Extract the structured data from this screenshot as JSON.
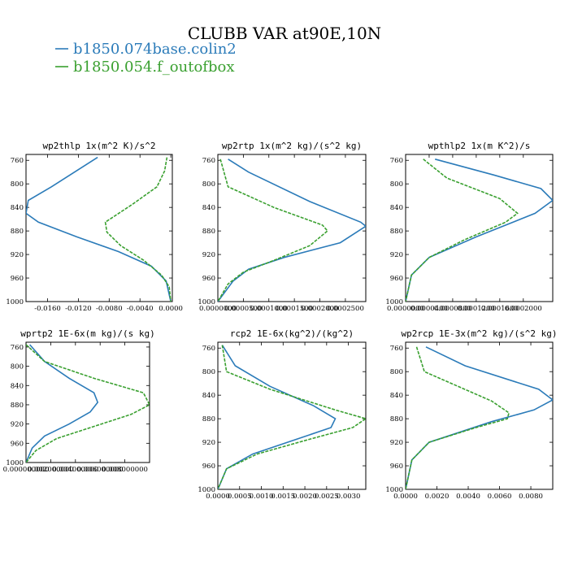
{
  "figure": {
    "title": "CLUBB VAR at90E,10N",
    "legend": [
      {
        "label": "b1850.074base.colin2",
        "color": "#2b7bb9",
        "dash": false
      },
      {
        "label": "b1850.054.f_outofbox",
        "color": "#3aa030",
        "dash": true
      }
    ]
  },
  "chart_data": [
    {
      "type": "line",
      "title": "wp2thlp  1x(m^2 K)/s^2",
      "xlim": [
        -0.0188,
        0.0002
      ],
      "ylim": [
        1000,
        750
      ],
      "xticks": [
        -0.016,
        -0.012,
        -0.008,
        -0.004,
        0.0
      ],
      "xtick_labels": [
        "-0.0160",
        "-0.0120",
        "-0.0080",
        "-0.0040",
        "0.0000"
      ],
      "yticks": [
        760,
        800,
        840,
        880,
        920,
        960,
        1000
      ],
      "ytick_labels": [
        "760",
        "800",
        "840",
        "880",
        "920",
        "960",
        "1000"
      ],
      "series": [
        {
          "name": "b1850.074base.colin2",
          "color": "#2b7bb9",
          "dash": false,
          "x": [
            -0.0095,
            -0.0125,
            -0.0155,
            -0.0185,
            -0.0188,
            -0.0172,
            -0.0122,
            -0.0068,
            -0.0025,
            -0.0006,
            0.0
          ],
          "y": [
            755,
            780,
            805,
            828,
            850,
            865,
            890,
            915,
            940,
            965,
            1000
          ]
        },
        {
          "name": "b1850.054.f_outofbox",
          "color": "#3aa030",
          "dash": true,
          "x": [
            -0.0005,
            -0.0008,
            -0.0018,
            -0.005,
            -0.0085,
            -0.0083,
            -0.0065,
            -0.0035,
            -0.0012,
            -0.0002,
            0.0
          ],
          "y": [
            755,
            778,
            805,
            835,
            865,
            882,
            905,
            930,
            955,
            975,
            1000
          ]
        }
      ]
    },
    {
      "type": "line",
      "title": "wp2rtp  1x(m^2 kg)/(s^2 kg)",
      "xlim": [
        0.0,
        0.00029
      ],
      "ylim": [
        1000,
        750
      ],
      "xticks": [
        0.0,
        5e-05,
        0.0001,
        0.00015,
        0.0002,
        0.00025
      ],
      "xtick_labels": [
        "0.0000000",
        "0.0000500",
        "0.0001000",
        "0.0001500",
        "0.0002000",
        "0.0002500"
      ],
      "yticks": [
        760,
        800,
        840,
        880,
        920,
        960,
        1000
      ],
      "ytick_labels": [
        "760",
        "800",
        "840",
        "880",
        "920",
        "960",
        "1000"
      ],
      "series": [
        {
          "name": "b1850.074base.colin2",
          "color": "#2b7bb9",
          "dash": false,
          "x": [
            2e-05,
            6e-05,
            0.00018,
            0.00028,
            0.00029,
            0.00024,
            0.00013,
            6e-05,
            3e-05,
            0.0
          ],
          "y": [
            758,
            780,
            830,
            865,
            872,
            900,
            925,
            945,
            965,
            1000
          ]
        },
        {
          "name": "b1850.054.f_outofbox",
          "color": "#3aa030",
          "dash": true,
          "x": [
            5e-06,
            2e-05,
            0.00011,
            0.000205,
            0.000215,
            0.00018,
            0.00011,
            5e-05,
            2e-05,
            0.0
          ],
          "y": [
            758,
            805,
            840,
            870,
            880,
            905,
            930,
            950,
            970,
            1000
          ]
        }
      ]
    },
    {
      "type": "line",
      "title": "wpthlp2  1x(m K^2)/s",
      "xlim": [
        0.0,
        0.00025
      ],
      "ylim": [
        1000,
        750
      ],
      "xticks": [
        0.0,
        4e-05,
        8e-05,
        0.00012,
        0.00016,
        0.0002
      ],
      "xtick_labels": [
        "0.0000000",
        "0.0000400",
        "0.0000800",
        "0.0001200",
        "0.0001600",
        "0.0002000"
      ],
      "yticks": [
        760,
        800,
        840,
        880,
        920,
        960,
        1000
      ],
      "ytick_labels": [
        "760",
        "800",
        "840",
        "880",
        "920",
        "960",
        "1000"
      ],
      "series": [
        {
          "name": "b1850.074base.colin2",
          "color": "#2b7bb9",
          "dash": false,
          "x": [
            5e-05,
            0.00015,
            0.00023,
            0.00025,
            0.00022,
            0.00012,
            4e-05,
            1e-05,
            0.0
          ],
          "y": [
            758,
            785,
            808,
            828,
            850,
            890,
            925,
            955,
            1000
          ]
        },
        {
          "name": "b1850.054.f_outofbox",
          "color": "#3aa030",
          "dash": true,
          "x": [
            3e-05,
            7e-05,
            0.00016,
            0.00019,
            0.00017,
            0.0001,
            4e-05,
            1e-05,
            0.0
          ],
          "y": [
            758,
            790,
            825,
            850,
            865,
            895,
            925,
            955,
            1000
          ]
        }
      ]
    },
    {
      "type": "line",
      "title": "wprtp2  1E-6x(m kg)/(s kg)",
      "xlim": [
        0.0,
        0.01
      ],
      "ylim": [
        1000,
        750
      ],
      "xticks": [
        0.0,
        0.002,
        0.004,
        0.006,
        0.008
      ],
      "xtick_labels": [
        "0.000000000",
        "0.002000000",
        "0.004000000",
        "0.006000000",
        "0.008000000"
      ],
      "yticks": [
        760,
        800,
        840,
        880,
        920,
        960,
        1000
      ],
      "ytick_labels": [
        "760",
        "800",
        "840",
        "880",
        "920",
        "960",
        "1000"
      ],
      "series": [
        {
          "name": "b1850.074base.colin2",
          "color": "#2b7bb9",
          "dash": false,
          "x": [
            0.0003,
            0.0015,
            0.0035,
            0.0055,
            0.0058,
            0.0052,
            0.0035,
            0.0015,
            0.0005,
            0.0
          ],
          "y": [
            755,
            790,
            825,
            855,
            875,
            895,
            920,
            945,
            970,
            1000
          ]
        },
        {
          "name": "b1850.054.f_outofbox",
          "color": "#3aa030",
          "dash": true,
          "x": [
            0.0,
            0.0015,
            0.0055,
            0.0095,
            0.01,
            0.0085,
            0.0055,
            0.0025,
            0.0008,
            0.0
          ],
          "y": [
            755,
            790,
            825,
            855,
            880,
            900,
            925,
            950,
            975,
            1000
          ]
        }
      ]
    },
    {
      "type": "line",
      "title": "rcp2  1E-6x(kg^2)/(kg^2)",
      "xlim": [
        0.0,
        0.0034
      ],
      "ylim": [
        1000,
        750
      ],
      "xticks": [
        0.0,
        0.0005,
        0.001,
        0.0015,
        0.002,
        0.0025,
        0.003
      ],
      "xtick_labels": [
        "0.0000",
        "0.0005",
        "0.0010",
        "0.0015",
        "0.0020",
        "0.0025",
        "0.0030"
      ],
      "yticks": [
        760,
        800,
        840,
        880,
        920,
        960,
        1000
      ],
      "ytick_labels": [
        "760",
        "800",
        "840",
        "880",
        "920",
        "960",
        "1000"
      ],
      "series": [
        {
          "name": "b1850.074base.colin2",
          "color": "#2b7bb9",
          "dash": false,
          "x": [
            0.0001,
            0.0004,
            0.0012,
            0.0022,
            0.0027,
            0.0026,
            0.0018,
            0.0008,
            0.0002,
            0.0
          ],
          "y": [
            755,
            790,
            825,
            858,
            880,
            895,
            915,
            940,
            965,
            1000
          ]
        },
        {
          "name": "b1850.054.f_outofbox",
          "color": "#3aa030",
          "dash": true,
          "x": [
            0.0001,
            0.0002,
            0.0012,
            0.0027,
            0.0034,
            0.0031,
            0.0021,
            0.0009,
            0.0002,
            0.0
          ],
          "y": [
            755,
            800,
            830,
            865,
            880,
            895,
            915,
            940,
            965,
            1000
          ]
        }
      ]
    },
    {
      "type": "line",
      "title": "wp2rcp  1E-3x(m^2 kg)/(s^2 kg)",
      "xlim": [
        0.0,
        0.0094
      ],
      "ylim": [
        1000,
        750
      ],
      "xticks": [
        0.0,
        0.002,
        0.004,
        0.006,
        0.008
      ],
      "xtick_labels": [
        "0.0000",
        "0.0020",
        "0.0040",
        "0.0060",
        "0.0080"
      ],
      "yticks": [
        760,
        800,
        840,
        880,
        920,
        960,
        1000
      ],
      "ytick_labels": [
        "760",
        "800",
        "840",
        "880",
        "920",
        "960",
        "1000"
      ],
      "series": [
        {
          "name": "b1850.074base.colin2",
          "color": "#2b7bb9",
          "dash": false,
          "x": [
            0.0013,
            0.0038,
            0.0085,
            0.0094,
            0.0082,
            0.0055,
            0.0015,
            0.0004,
            0.0
          ],
          "y": [
            758,
            790,
            830,
            848,
            865,
            885,
            920,
            950,
            1000
          ]
        },
        {
          "name": "b1850.054.f_outofbox",
          "color": "#3aa030",
          "dash": true,
          "x": [
            0.0007,
            0.0012,
            0.0055,
            0.0066,
            0.0065,
            0.0045,
            0.0015,
            0.0004,
            0.0
          ],
          "y": [
            758,
            800,
            850,
            870,
            880,
            895,
            920,
            950,
            1000
          ]
        }
      ]
    }
  ]
}
